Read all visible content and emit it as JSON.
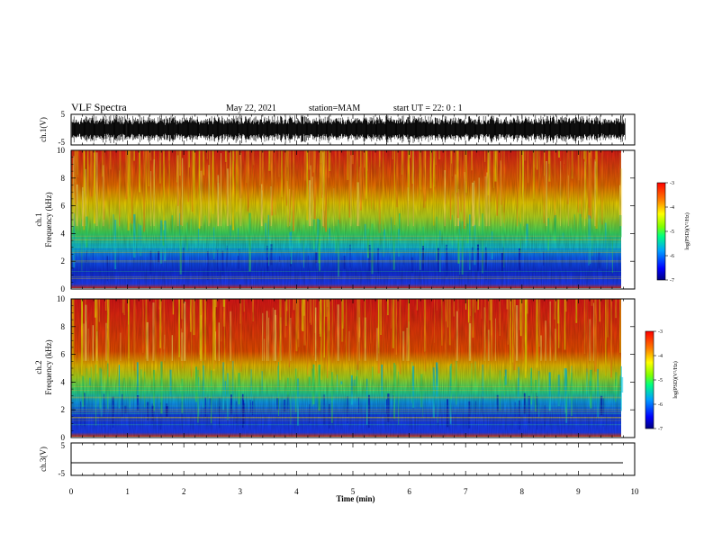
{
  "header": {
    "title": "VLF Spectra",
    "date": "May 22, 2021",
    "station": "station=MAM",
    "start": "start UT = 22: 0 : 1"
  },
  "colors": {
    "spectrum_scale": [
      "#000080",
      "#0000ff",
      "#0064ff",
      "#00c8ff",
      "#00ff96",
      "#64ff00",
      "#ffff00",
      "#ffa000",
      "#ff0000"
    ],
    "waveform": "#000000"
  },
  "chart_data": [
    {
      "type": "line",
      "name": "ch1-waveform",
      "ylabel": "ch.1(V)",
      "ylim": [
        -5,
        5
      ],
      "yticks": [
        "5",
        "-5"
      ],
      "x_range_min": [
        0,
        9.83
      ],
      "note_shape": "dense bursty waveform, amplitude near full scale"
    },
    {
      "type": "heatmap",
      "name": "ch1-spectrogram",
      "ylabel": "Frequency (kHz)",
      "channel_label": "ch.1",
      "ylim": [
        0,
        10
      ],
      "yticks": [
        "0",
        "2",
        "4",
        "6",
        "8",
        "10"
      ],
      "colorbar": {
        "label": "log(PSD)(V²/Hz)",
        "range": [
          -7,
          -3
        ],
        "ticks": [
          "-3",
          "-4",
          "-5",
          "-6",
          "-7"
        ]
      }
    },
    {
      "type": "heatmap",
      "name": "ch2-spectrogram",
      "ylabel": "Frequency (kHz)",
      "channel_label": "ch.2",
      "ylim": [
        0,
        10
      ],
      "yticks": [
        "0",
        "2",
        "4",
        "6",
        "8",
        "10"
      ],
      "colorbar": {
        "label": "log(PSD)(V²/Hz)",
        "range": [
          -7,
          -3
        ],
        "ticks": [
          "-3",
          "-4",
          "-5",
          "-6",
          "-7"
        ]
      }
    },
    {
      "type": "line",
      "name": "ch3-waveform",
      "ylabel": "ch.3(V)",
      "ylim": [
        -5,
        5
      ],
      "yticks": [
        "5",
        "-5"
      ],
      "values_constant": -2
    }
  ],
  "xaxis": {
    "label": "Time (min)",
    "ticks": [
      "0",
      "1",
      "2",
      "3",
      "4",
      "5",
      "6",
      "7",
      "8",
      "9",
      "10"
    ],
    "range": [
      0,
      10
    ]
  }
}
